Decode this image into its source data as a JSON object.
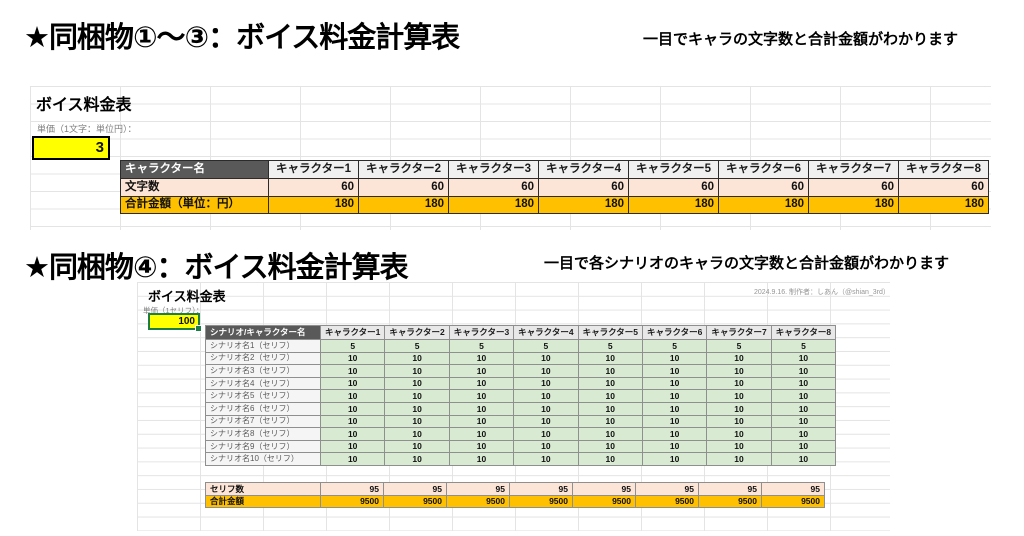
{
  "section1": {
    "title": "★同梱物①～③：ボイス料金計算表",
    "note": "一目でキャラの文字数と合計金額がわかります",
    "sheet": {
      "title": "ボイス料金表",
      "unit_label": "単価（1文字：単位円）：",
      "unit_value": "3"
    },
    "table": {
      "header": [
        "キャラクター名",
        "キャラクター1",
        "キャラクター2",
        "キャラクター3",
        "キャラクター4",
        "キャラクター5",
        "キャラクター6",
        "キャラクター7",
        "キャラクター8"
      ],
      "rows": [
        {
          "label": "文字数",
          "label_style": "pink",
          "value_style": "pink",
          "align": "right",
          "values": [
            60,
            60,
            60,
            60,
            60,
            60,
            60,
            60
          ]
        },
        {
          "label": "合計金額（単位：円）",
          "label_style": "gold",
          "value_style": "gold",
          "align": "right",
          "values": [
            180,
            180,
            180,
            180,
            180,
            180,
            180,
            180
          ]
        }
      ]
    }
  },
  "section2": {
    "title": "★同梱物④：ボイス料金計算表",
    "note": "一目で各シナリオのキャラの文字数と合計金額がわかります",
    "credit": "2024.9.16. 制作者：しあん（@shian_3rd）",
    "sheet": {
      "title": "ボイス料金表",
      "unit_label": "単価（1セリフ）：",
      "unit_value": "100"
    },
    "table": {
      "header": [
        "シナリオ/キャラクター名",
        "キャラクター1",
        "キャラクター2",
        "キャラクター3",
        "キャラクター4",
        "キャラクター5",
        "キャラクター6",
        "キャラクター7",
        "キャラクター8"
      ],
      "rows": [
        {
          "label": "シナリオ名1（セリフ）",
          "label_style": "scenario",
          "value_style": "green",
          "align": "center",
          "values": [
            5,
            5,
            5,
            5,
            5,
            5,
            5,
            5
          ]
        },
        {
          "label": "シナリオ名2（セリフ）",
          "label_style": "scenario",
          "value_style": "green",
          "align": "center",
          "values": [
            10,
            10,
            10,
            10,
            10,
            10,
            10,
            10
          ]
        },
        {
          "label": "シナリオ名3（セリフ）",
          "label_style": "scenario",
          "value_style": "green",
          "align": "center",
          "values": [
            10,
            10,
            10,
            10,
            10,
            10,
            10,
            10
          ]
        },
        {
          "label": "シナリオ名4（セリフ）",
          "label_style": "scenario",
          "value_style": "green",
          "align": "center",
          "values": [
            10,
            10,
            10,
            10,
            10,
            10,
            10,
            10
          ]
        },
        {
          "label": "シナリオ名5（セリフ）",
          "label_style": "scenario",
          "value_style": "green",
          "align": "center",
          "values": [
            10,
            10,
            10,
            10,
            10,
            10,
            10,
            10
          ]
        },
        {
          "label": "シナリオ名6（セリフ）",
          "label_style": "scenario",
          "value_style": "green",
          "align": "center",
          "values": [
            10,
            10,
            10,
            10,
            10,
            10,
            10,
            10
          ]
        },
        {
          "label": "シナリオ名7（セリフ）",
          "label_style": "scenario",
          "value_style": "green",
          "align": "center",
          "values": [
            10,
            10,
            10,
            10,
            10,
            10,
            10,
            10
          ]
        },
        {
          "label": "シナリオ名8（セリフ）",
          "label_style": "scenario",
          "value_style": "green",
          "align": "center",
          "values": [
            10,
            10,
            10,
            10,
            10,
            10,
            10,
            10
          ]
        },
        {
          "label": "シナリオ名9（セリフ）",
          "label_style": "scenario",
          "value_style": "green",
          "align": "center",
          "values": [
            10,
            10,
            10,
            10,
            10,
            10,
            10,
            10
          ]
        },
        {
          "label": "シナリオ名10（セリフ）",
          "label_style": "scenario",
          "value_style": "green",
          "align": "center",
          "values": [
            10,
            10,
            10,
            10,
            10,
            10,
            10,
            10
          ]
        }
      ]
    },
    "totals": {
      "rows": [
        {
          "label": "セリフ数",
          "label_style": "pink",
          "value_style": "pink",
          "align": "right",
          "values": [
            95,
            95,
            95,
            95,
            95,
            95,
            95,
            95
          ]
        },
        {
          "label": "合計金額",
          "label_style": "gold",
          "value_style": "gold",
          "align": "right",
          "values": [
            9500,
            9500,
            9500,
            9500,
            9500,
            9500,
            9500,
            9500
          ]
        }
      ]
    }
  },
  "colors": {
    "header_dark": "#595959",
    "accent_pink": "#fce4d6",
    "accent_gold": "#ffc000",
    "accent_green": "#d9ead3",
    "unit_yellow": "#ffff00",
    "selection_green": "#1e7c45"
  }
}
